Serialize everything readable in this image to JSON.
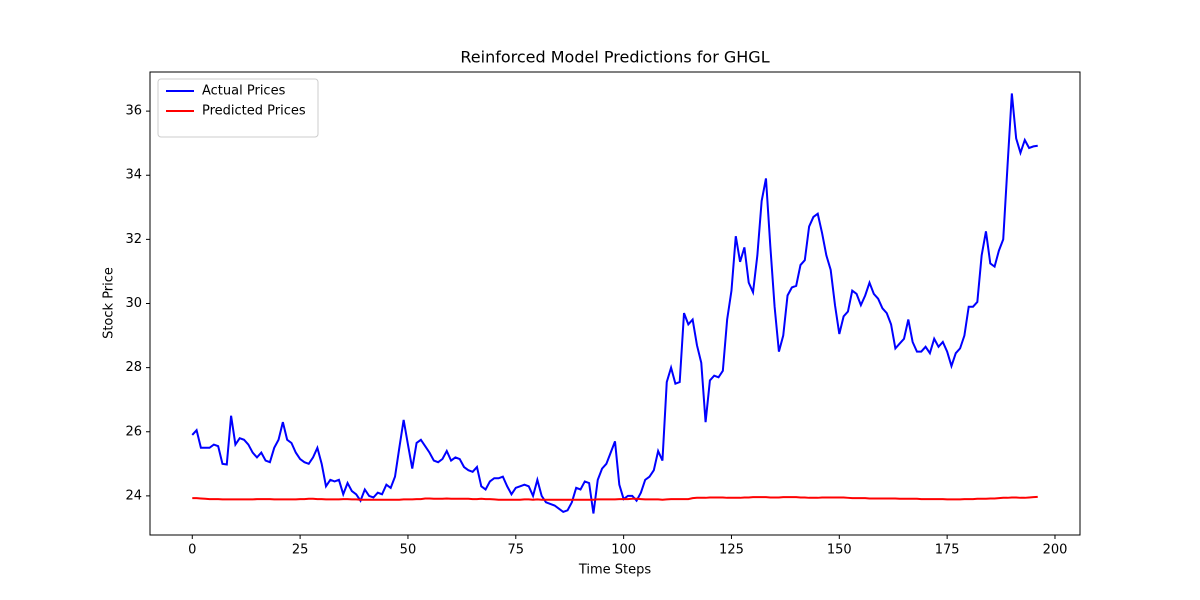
{
  "chart_data": {
    "type": "line",
    "title": "Reinforced Model Predictions for GHGL",
    "x_label": "Time Steps",
    "y_label": "Stock Price",
    "x": [
      0,
      1,
      2,
      3,
      4,
      5,
      6,
      7,
      8,
      9,
      10,
      11,
      12,
      13,
      14,
      15,
      16,
      17,
      18,
      19,
      20,
      21,
      22,
      23,
      24,
      25,
      26,
      27,
      28,
      29,
      30,
      31,
      32,
      33,
      34,
      35,
      36,
      37,
      38,
      39,
      40,
      41,
      42,
      43,
      44,
      45,
      46,
      47,
      48,
      49,
      50,
      51,
      52,
      53,
      54,
      55,
      56,
      57,
      58,
      59,
      60,
      61,
      62,
      63,
      64,
      65,
      66,
      67,
      68,
      69,
      70,
      71,
      72,
      73,
      74,
      75,
      76,
      77,
      78,
      79,
      80,
      81,
      82,
      83,
      84,
      85,
      86,
      87,
      88,
      89,
      90,
      91,
      92,
      93,
      94,
      95,
      96,
      97,
      98,
      99,
      100,
      101,
      102,
      103,
      104,
      105,
      106,
      107,
      108,
      109,
      110,
      111,
      112,
      113,
      114,
      115,
      116,
      117,
      118,
      119,
      120,
      121,
      122,
      123,
      124,
      125,
      126,
      127,
      128,
      129,
      130,
      131,
      132,
      133,
      134,
      135,
      136,
      137,
      138,
      139,
      140,
      141,
      142,
      143,
      144,
      145,
      146,
      147,
      148,
      149,
      150,
      151,
      152,
      153,
      154,
      155,
      156,
      157,
      158,
      159,
      160,
      161,
      162,
      163,
      164,
      165,
      166,
      167,
      168,
      169,
      170,
      171,
      172,
      173,
      174,
      175,
      176,
      177,
      178,
      179,
      180,
      181,
      182,
      183,
      184,
      185,
      186,
      187,
      188,
      189,
      190,
      191,
      192,
      193,
      194,
      195,
      196
    ],
    "series": [
      {
        "name": "Actual Prices",
        "color": "#0000ff",
        "values": [
          25.9,
          26.05,
          25.5,
          25.5,
          25.5,
          25.6,
          25.55,
          25.0,
          24.98,
          26.5,
          25.6,
          25.8,
          25.75,
          25.6,
          25.35,
          25.2,
          25.35,
          25.1,
          25.05,
          25.5,
          25.75,
          26.3,
          25.75,
          25.65,
          25.35,
          25.15,
          25.05,
          25.0,
          25.2,
          25.5,
          25.0,
          24.3,
          24.5,
          24.45,
          24.5,
          24.05,
          24.4,
          24.15,
          24.05,
          23.85,
          24.2,
          24.0,
          23.95,
          24.1,
          24.05,
          24.35,
          24.25,
          24.6,
          25.5,
          26.37,
          25.6,
          24.85,
          25.65,
          25.75,
          25.55,
          25.35,
          25.1,
          25.05,
          25.15,
          25.4,
          25.1,
          25.2,
          25.15,
          24.9,
          24.8,
          24.75,
          24.9,
          24.3,
          24.2,
          24.45,
          24.55,
          24.55,
          24.6,
          24.3,
          24.05,
          24.25,
          24.3,
          24.35,
          24.3,
          24.0,
          24.5,
          24.0,
          23.8,
          23.75,
          23.7,
          23.6,
          23.5,
          23.55,
          23.8,
          24.25,
          24.2,
          24.45,
          24.4,
          23.45,
          24.5,
          24.85,
          25.0,
          25.35,
          25.7,
          24.35,
          23.9,
          24.0,
          24.0,
          23.85,
          24.1,
          24.5,
          24.6,
          24.8,
          25.4,
          25.1,
          27.55,
          28.0,
          27.5,
          27.55,
          29.7,
          29.35,
          29.5,
          28.7,
          28.15,
          26.3,
          27.6,
          27.75,
          27.7,
          27.9,
          29.5,
          30.4,
          32.1,
          31.3,
          31.75,
          30.65,
          30.35,
          31.5,
          33.2,
          33.9,
          31.8,
          29.9,
          28.5,
          29.0,
          30.25,
          30.5,
          30.55,
          31.2,
          31.35,
          32.4,
          32.7,
          32.8,
          32.2,
          31.5,
          31.05,
          29.95,
          29.05,
          29.6,
          29.75,
          30.4,
          30.3,
          29.95,
          30.25,
          30.65,
          30.3,
          30.15,
          29.85,
          29.7,
          29.35,
          28.6,
          28.75,
          28.9,
          29.5,
          28.8,
          28.5,
          28.5,
          28.65,
          28.45,
          28.9,
          28.65,
          28.8,
          28.5,
          28.05,
          28.45,
          28.6,
          29.0,
          29.9,
          29.9,
          30.05,
          31.5,
          32.25,
          31.25,
          31.15,
          31.65,
          32.0,
          34.3,
          36.55,
          35.15,
          34.7,
          35.1,
          34.85,
          34.9,
          34.92
        ]
      },
      {
        "name": "Predicted Prices",
        "color": "#ff0000",
        "values": [
          23.93,
          23.93,
          23.92,
          23.91,
          23.9,
          23.9,
          23.9,
          23.89,
          23.89,
          23.89,
          23.89,
          23.89,
          23.89,
          23.89,
          23.89,
          23.9,
          23.9,
          23.9,
          23.9,
          23.89,
          23.89,
          23.89,
          23.89,
          23.89,
          23.89,
          23.9,
          23.9,
          23.91,
          23.91,
          23.9,
          23.9,
          23.89,
          23.89,
          23.89,
          23.89,
          23.9,
          23.9,
          23.89,
          23.89,
          23.88,
          23.88,
          23.88,
          23.88,
          23.88,
          23.88,
          23.88,
          23.88,
          23.88,
          23.88,
          23.89,
          23.89,
          23.89,
          23.9,
          23.9,
          23.92,
          23.92,
          23.91,
          23.91,
          23.91,
          23.92,
          23.91,
          23.91,
          23.91,
          23.91,
          23.91,
          23.9,
          23.9,
          23.91,
          23.9,
          23.9,
          23.89,
          23.88,
          23.88,
          23.88,
          23.88,
          23.88,
          23.88,
          23.89,
          23.89,
          23.88,
          23.89,
          23.88,
          23.88,
          23.88,
          23.88,
          23.88,
          23.88,
          23.88,
          23.88,
          23.88,
          23.88,
          23.88,
          23.88,
          23.88,
          23.89,
          23.89,
          23.89,
          23.89,
          23.89,
          23.9,
          23.9,
          23.9,
          23.91,
          23.91,
          23.9,
          23.89,
          23.89,
          23.89,
          23.89,
          23.88,
          23.89,
          23.9,
          23.9,
          23.9,
          23.9,
          23.9,
          23.93,
          23.94,
          23.94,
          23.94,
          23.95,
          23.95,
          23.95,
          23.95,
          23.94,
          23.94,
          23.94,
          23.94,
          23.95,
          23.95,
          23.96,
          23.96,
          23.96,
          23.96,
          23.95,
          23.95,
          23.95,
          23.96,
          23.96,
          23.96,
          23.96,
          23.95,
          23.95,
          23.94,
          23.94,
          23.94,
          23.95,
          23.95,
          23.95,
          23.95,
          23.95,
          23.95,
          23.94,
          23.93,
          23.93,
          23.93,
          23.93,
          23.92,
          23.92,
          23.92,
          23.92,
          23.92,
          23.92,
          23.92,
          23.91,
          23.91,
          23.91,
          23.91,
          23.91,
          23.9,
          23.9,
          23.9,
          23.9,
          23.9,
          23.9,
          23.89,
          23.89,
          23.89,
          23.89,
          23.9,
          23.9,
          23.9,
          23.91,
          23.91,
          23.91,
          23.92,
          23.92,
          23.93,
          23.94,
          23.94,
          23.95,
          23.95,
          23.94,
          23.94,
          23.95,
          23.96,
          23.97
        ]
      }
    ],
    "xlim": [
      -9.8,
      205.8
    ],
    "ylim": [
      22.78,
      37.22
    ],
    "xticks": [
      0,
      25,
      50,
      75,
      100,
      125,
      150,
      175,
      200
    ],
    "yticks": [
      24,
      26,
      28,
      30,
      32,
      34,
      36
    ],
    "grid": false,
    "legend": "upper left"
  }
}
